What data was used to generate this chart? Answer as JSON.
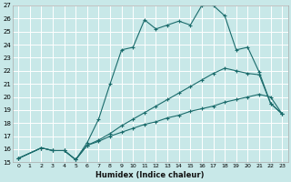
{
  "xlabel": "Humidex (Indice chaleur)",
  "bg_color": "#c8e8e8",
  "grid_color": "#ffffff",
  "line_color": "#1a6b6b",
  "xlim": [
    -0.5,
    23.5
  ],
  "ylim": [
    15,
    27
  ],
  "xticks": [
    0,
    1,
    2,
    3,
    4,
    5,
    6,
    7,
    8,
    9,
    10,
    11,
    12,
    13,
    14,
    15,
    16,
    17,
    18,
    19,
    20,
    21,
    22,
    23
  ],
  "yticks": [
    15,
    16,
    17,
    18,
    19,
    20,
    21,
    22,
    23,
    24,
    25,
    26,
    27
  ],
  "line1_x": [
    0,
    2,
    3,
    4,
    5,
    6,
    7,
    8,
    9,
    10,
    11,
    12,
    13,
    14,
    15,
    16,
    17,
    18,
    19,
    20,
    21,
    22,
    23
  ],
  "line1_y": [
    15.3,
    16.1,
    15.9,
    15.9,
    15.2,
    16.5,
    18.3,
    21.0,
    23.6,
    23.8,
    25.9,
    25.2,
    25.5,
    25.8,
    25.5,
    27.0,
    27.0,
    26.2,
    23.6,
    23.8,
    21.9,
    19.5,
    18.7
  ],
  "line2_x": [
    0,
    2,
    3,
    4,
    5,
    6,
    7,
    8,
    9,
    10,
    11,
    12,
    13,
    14,
    15,
    16,
    17,
    18,
    19,
    20,
    21,
    22,
    23
  ],
  "line2_y": [
    15.3,
    16.1,
    15.9,
    15.9,
    15.2,
    16.3,
    16.6,
    17.0,
    17.3,
    17.6,
    17.9,
    18.1,
    18.4,
    18.6,
    18.9,
    19.1,
    19.3,
    19.6,
    19.8,
    20.0,
    20.2,
    20.0,
    18.7
  ],
  "line3_x": [
    0,
    2,
    3,
    4,
    5,
    6,
    7,
    8,
    9,
    10,
    11,
    12,
    13,
    14,
    15,
    16,
    17,
    18,
    19,
    20,
    21,
    22,
    23
  ],
  "line3_y": [
    15.3,
    16.1,
    15.9,
    15.9,
    15.2,
    16.3,
    16.7,
    17.2,
    17.8,
    18.3,
    18.8,
    19.3,
    19.8,
    20.3,
    20.8,
    21.3,
    21.8,
    22.2,
    22.0,
    21.8,
    21.7,
    19.5,
    18.7
  ]
}
